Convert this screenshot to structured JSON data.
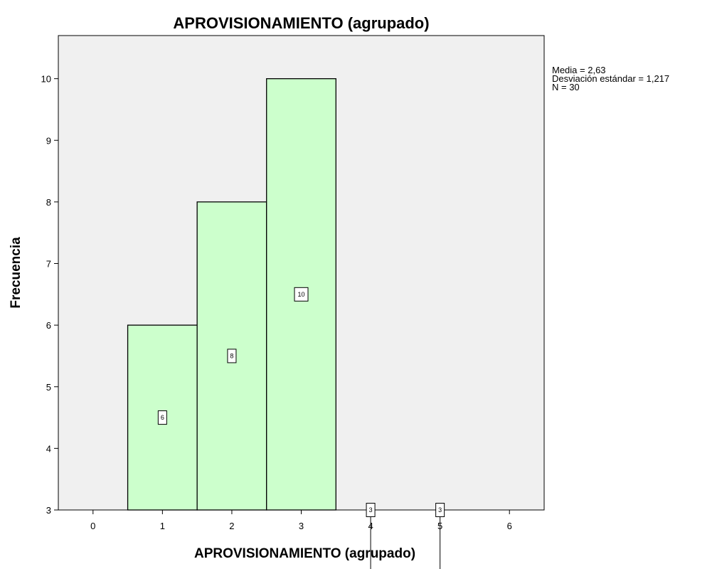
{
  "chart_data": {
    "type": "bar",
    "title": "APROVISIONAMIENTO (agrupado)",
    "xlabel": "APROVISIONAMIENTO (agrupado)",
    "ylabel": "Frecuencia",
    "x_ticks": [
      "0",
      "1",
      "2",
      "3",
      "4",
      "5",
      "6"
    ],
    "y_ticks": [
      "3",
      "4",
      "5",
      "6",
      "7",
      "8",
      "9",
      "10"
    ],
    "xlim": [
      -0.5,
      6.5
    ],
    "ylim": [
      3,
      10.7
    ],
    "categories": [
      "1",
      "2",
      "3",
      "4",
      "5"
    ],
    "values": [
      6,
      8,
      10,
      3,
      3
    ],
    "data_labels": [
      "6",
      "8",
      "10",
      "3",
      "3"
    ],
    "bar_color": "#ccffcc",
    "plot_background": "#f0f0f0",
    "stats": [
      "Media = 2,63",
      "Desviación estándar = 1,217",
      "N = 30"
    ],
    "grid": false,
    "legend": "none"
  }
}
